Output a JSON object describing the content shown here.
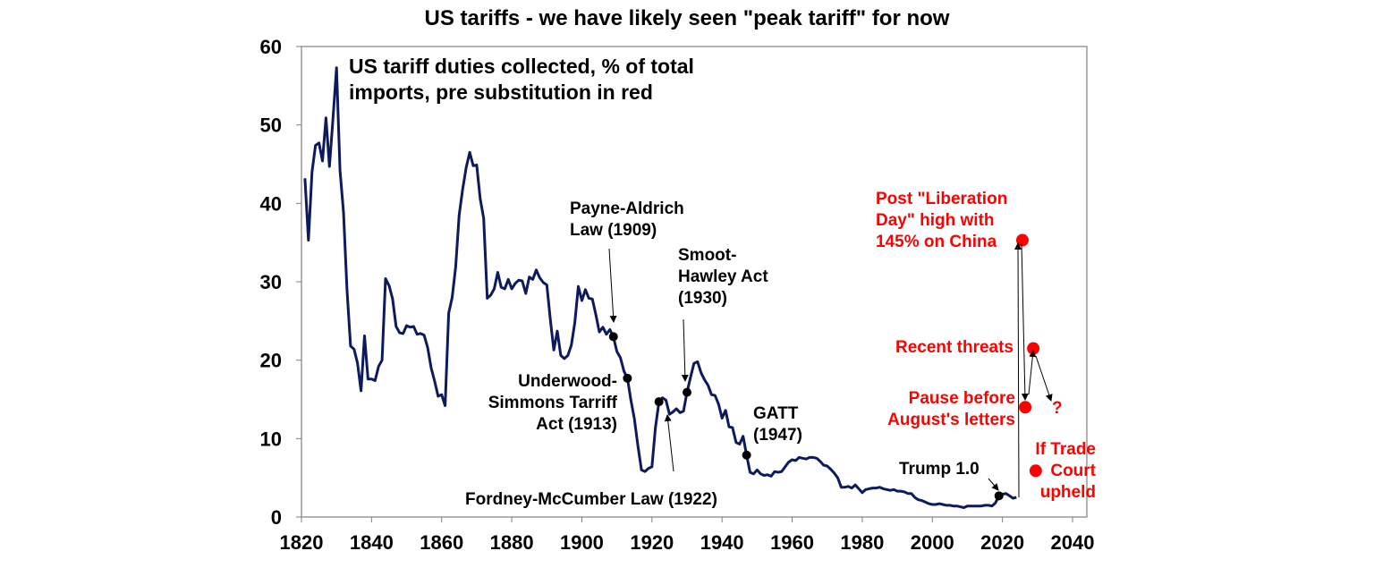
{
  "chart_data": {
    "type": "line",
    "title": "US tariffs - we have likely seen \"peak tariff\" for now",
    "inset_label": [
      "US tariff duties collected, % of total",
      "imports, pre substitution in red"
    ],
    "xlim": [
      1820,
      2040
    ],
    "ylim": [
      0,
      60
    ],
    "xticks": [
      1820,
      1840,
      1860,
      1880,
      1900,
      1920,
      1940,
      1960,
      1980,
      2000,
      2020,
      2040
    ],
    "yticks": [
      0,
      10,
      20,
      30,
      40,
      50,
      60
    ],
    "grid": false,
    "line_color": "#0d1b5c",
    "series": [
      {
        "x": [
          1821,
          1822,
          1823,
          1824,
          1825,
          1826,
          1827,
          1828,
          1829,
          1830,
          1831,
          1832,
          1833,
          1834,
          1835,
          1836,
          1837,
          1838,
          1839,
          1840,
          1841,
          1842,
          1843,
          1844,
          1845,
          1846,
          1847,
          1848,
          1849,
          1850,
          1851,
          1852,
          1853,
          1854,
          1855,
          1856,
          1857,
          1858,
          1859,
          1860,
          1861,
          1862,
          1863,
          1864,
          1865,
          1866,
          1867,
          1868,
          1869,
          1870,
          1871,
          1872,
          1873,
          1874,
          1875,
          1876,
          1877,
          1878,
          1879,
          1880,
          1881,
          1882,
          1883,
          1884,
          1885,
          1886,
          1887,
          1888,
          1889,
          1890,
          1891,
          1892,
          1893,
          1894,
          1895,
          1896,
          1897,
          1898,
          1899,
          1900,
          1901,
          1902,
          1903,
          1904,
          1905,
          1906,
          1907,
          1908,
          1909,
          1910,
          1911,
          1912,
          1913,
          1914,
          1915,
          1916,
          1917,
          1918,
          1919,
          1920,
          1921,
          1922,
          1923,
          1924,
          1925,
          1926,
          1927,
          1928,
          1929,
          1930,
          1931,
          1932,
          1933,
          1934,
          1935,
          1936,
          1937,
          1938,
          1939,
          1940,
          1941,
          1942,
          1943,
          1944,
          1945,
          1946,
          1947,
          1948,
          1949,
          1950,
          1951,
          1952,
          1953,
          1954,
          1955,
          1956,
          1957,
          1958,
          1959,
          1960,
          1961,
          1962,
          1963,
          1964,
          1965,
          1966,
          1967,
          1968,
          1969,
          1970,
          1971,
          1972,
          1973,
          1974,
          1975,
          1976,
          1977,
          1978,
          1979,
          1980,
          1981,
          1982,
          1983,
          1984,
          1985,
          1986,
          1987,
          1988,
          1989,
          1990,
          1991,
          1992,
          1993,
          1994,
          1995,
          1996,
          1997,
          1998,
          1999,
          2000,
          2001,
          2002,
          2003,
          2004,
          2005,
          2006,
          2007,
          2008,
          2009,
          2010,
          2011,
          2012,
          2013,
          2014,
          2015,
          2016,
          2017,
          2018,
          2019,
          2020,
          2021,
          2022,
          2023,
          2024
        ],
        "y": [
          43.2,
          35.3,
          44,
          47.4,
          47.7,
          45.4,
          50.9,
          44.7,
          50.9,
          57.3,
          44.2,
          38.9,
          29,
          21.8,
          21.4,
          19.6,
          16.1,
          23.1,
          17.6,
          17.6,
          17.4,
          19.2,
          20,
          30.4,
          29.5,
          27.8,
          24.3,
          23.5,
          23.4,
          24.4,
          24.2,
          24.3,
          23.3,
          23.4,
          23.2,
          21.6,
          19,
          17.3,
          15.4,
          15.6,
          14.2,
          26,
          28,
          31.9,
          38.5,
          41.8,
          44.6,
          46.5,
          44.8,
          44.9,
          40.6,
          38.1,
          27.9,
          28.3,
          29.1,
          31.2,
          29.3,
          29.1,
          30.3,
          29.1,
          29.8,
          30.2,
          30.1,
          28.5,
          30.6,
          30.3,
          31.5,
          30.5,
          29.9,
          29.6,
          25.2,
          21.3,
          23.7,
          20.6,
          20.2,
          20.6,
          21.9,
          24.8,
          29.4,
          27.6,
          29,
          27.9,
          27.8,
          25.8,
          23.6,
          24.2,
          23.3,
          23.9,
          23.0,
          21.1,
          20.3,
          18.6,
          17.7,
          14.9,
          12.5,
          9.1,
          6.0,
          5.8,
          6.2,
          6.4,
          11.4,
          14.7,
          15.2,
          14.9,
          13.1,
          13.4,
          13.8,
          13.3,
          13.5,
          15.9,
          17.8,
          19.6,
          19.8,
          18.4,
          17.5,
          16.8,
          15.6,
          15.5,
          14.4,
          12.6,
          13.6,
          11.5,
          11.4,
          9.5,
          9.3,
          10.3,
          7.9,
          5.7,
          5.5,
          6.0,
          5.5,
          5.3,
          5.4,
          5.2,
          5.8,
          5.7,
          5.8,
          6.4,
          7.0,
          7.3,
          7.2,
          7.6,
          7.5,
          7.4,
          7.6,
          7.6,
          7.5,
          7.1,
          6.6,
          6.5,
          6.1,
          5.6,
          5.0,
          3.8,
          3.8,
          3.9,
          3.7,
          4.1,
          3.6,
          3.1,
          3.5,
          3.6,
          3.7,
          3.7,
          3.8,
          3.6,
          3.5,
          3.4,
          3.5,
          3.3,
          3.3,
          3.2,
          3.0,
          3.0,
          2.5,
          2.2,
          2.1,
          1.9,
          1.7,
          1.6,
          1.6,
          1.7,
          1.6,
          1.5,
          1.5,
          1.4,
          1.4,
          1.3,
          1.2,
          1.4,
          1.4,
          1.4,
          1.4,
          1.4,
          1.5,
          1.5,
          1.4,
          1.8,
          2.7,
          2.9,
          3.0,
          2.7,
          2.4,
          2.5
        ]
      }
    ],
    "events": [
      {
        "label": [
          "Payne-Aldrich",
          "Law (1909)"
        ],
        "x": 1909,
        "y": 23.0
      },
      {
        "label": [
          "Underwood-",
          "Simmons Tarriff",
          "Act (1913)"
        ],
        "x": 1913,
        "y": 17.7
      },
      {
        "label": [
          "Fordney-McCumber Law (1922)"
        ],
        "x": 1922,
        "y": 14.7
      },
      {
        "label": [
          "Smoot-",
          "Hawley Act",
          "(1930)"
        ],
        "x": 1930,
        "y": 15.9
      },
      {
        "label": [
          "GATT",
          "(1947)"
        ],
        "x": 1947,
        "y": 7.9
      },
      {
        "label": [
          "Trump 1.0"
        ],
        "x": 2019,
        "y": 2.7
      }
    ],
    "red_points": [
      {
        "label": [
          "Post \"Liberation",
          "Day\" high with",
          "145% on China"
        ],
        "x": 2025.7,
        "y": 35.3
      },
      {
        "label": [
          "Pause before",
          "August's letters"
        ],
        "x": 2026.5,
        "y": 14.0
      },
      {
        "label": [
          "Recent threats"
        ],
        "x": 2028.8,
        "y": 21.5
      },
      {
        "label": [
          "If Trade",
          "Court",
          "upheld"
        ],
        "x": 2029.5,
        "y": 5.9
      }
    ],
    "question_mark": "?",
    "red_color": "#ff0000"
  }
}
